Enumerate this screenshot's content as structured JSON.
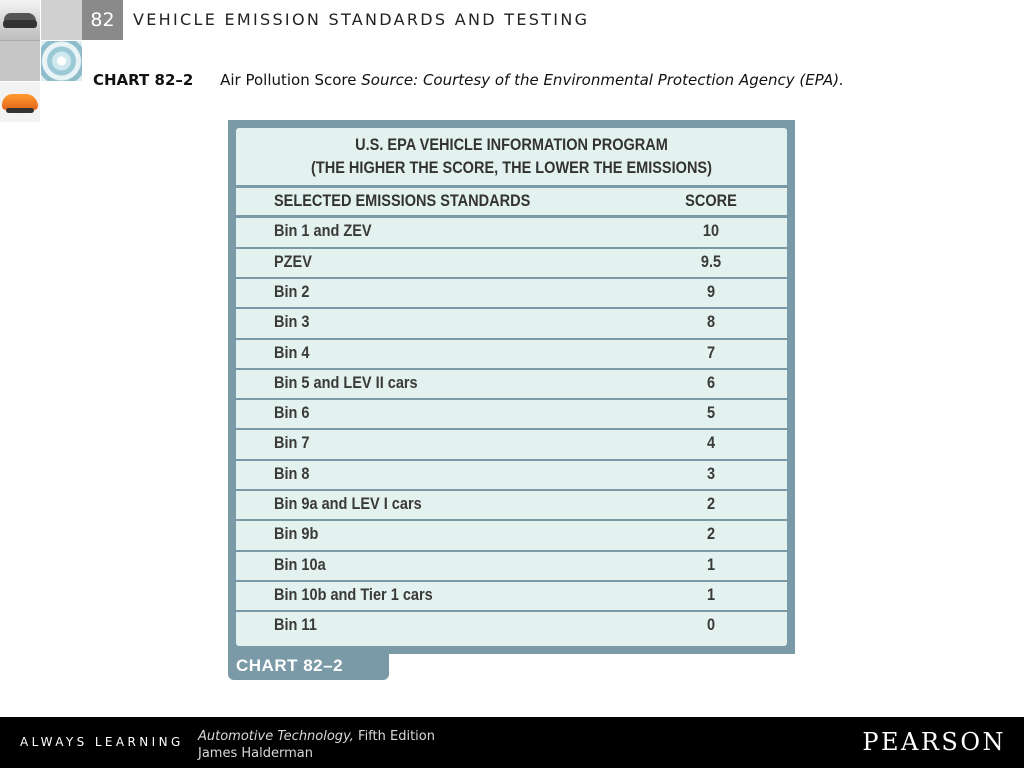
{
  "header": {
    "chapter_number": "82",
    "chapter_title": "VEHICLE EMISSION STANDARDS AND TESTING"
  },
  "caption": {
    "number": "CHART 82–2",
    "title": "Air Pollution Score",
    "source": "Source: Courtesy of the Environmental Protection Agency (EPA)."
  },
  "chart_data": {
    "type": "table",
    "title_line1": "U.S. EPA VEHICLE INFORMATION PROGRAM",
    "title_line2": "(THE HIGHER THE SCORE, THE LOWER THE EMISSIONS)",
    "columns": [
      "SELECTED EMISSIONS STANDARDS",
      "SCORE"
    ],
    "rows": [
      {
        "standard": "Bin 1 and ZEV",
        "score": "10"
      },
      {
        "standard": "PZEV",
        "score": "9.5"
      },
      {
        "standard": "Bin 2",
        "score": "9"
      },
      {
        "standard": "Bin 3",
        "score": "8"
      },
      {
        "standard": "Bin 4",
        "score": "7"
      },
      {
        "standard": "Bin 5 and LEV II cars",
        "score": "6"
      },
      {
        "standard": "Bin 6",
        "score": "5"
      },
      {
        "standard": "Bin 7",
        "score": "4"
      },
      {
        "standard": "Bin 8",
        "score": "3"
      },
      {
        "standard": "Bin 9a and LEV I cars",
        "score": "2"
      },
      {
        "standard": "Bin 9b",
        "score": "2"
      },
      {
        "standard": "Bin 10a",
        "score": "1"
      },
      {
        "standard": "Bin 10b and Tier 1 cars",
        "score": "1"
      },
      {
        "standard": "Bin 11",
        "score": "0"
      }
    ],
    "tab_label": "CHART 82–2"
  },
  "footer": {
    "tagline": "ALWAYS LEARNING",
    "book_title": "Automotive Technology,",
    "edition": "Fifth Edition",
    "author": "James Halderman",
    "publisher": "PEARSON"
  },
  "colors": {
    "frame": "#7a9aa8",
    "table_bg": "#e4f2ef",
    "chapter_box": "#8a8a8a",
    "footer_bg": "#000000"
  }
}
